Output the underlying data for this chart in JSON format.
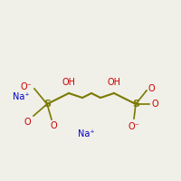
{
  "bg_color": "#f0efe8",
  "chain_color": "#7a7a00",
  "red_color": "#cc0000",
  "blue_color": "#0000cc",
  "chain_lw": 1.5,
  "bond_lw": 1.2,
  "font_size_s": 8,
  "font_size_o": 7,
  "font_size_oh": 7,
  "font_size_na": 7,
  "na_left": "Na⁺",
  "na_right": "Na⁺",
  "oh_left": "OH",
  "oh_right": "OH",
  "s_label": "S",
  "o_minus": "O⁻",
  "o_label": "O"
}
